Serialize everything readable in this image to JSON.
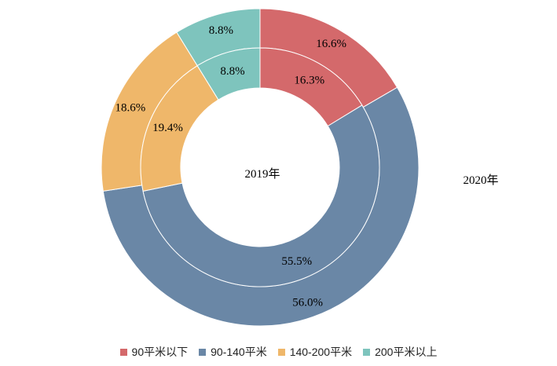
{
  "chart_data": {
    "type": "pie",
    "subtype": "nested-donut",
    "title": "",
    "categories": [
      "90平米以下",
      "90-140平米",
      "140-200平米",
      "200平米以上"
    ],
    "colors": [
      "#d4696b",
      "#6a87a6",
      "#efb76a",
      "#7ec4bd"
    ],
    "series": [
      {
        "name": "2019年",
        "ring": "inner",
        "values": [
          16.3,
          55.5,
          19.4,
          8.8
        ],
        "labels": [
          "16.3%",
          "55.5%",
          "19.4%",
          "8.8%"
        ]
      },
      {
        "name": "2020年",
        "ring": "outer",
        "values": [
          16.6,
          56.0,
          18.6,
          8.8
        ],
        "labels": [
          "16.6%",
          "56.0%",
          "18.6%",
          "8.8%"
        ]
      }
    ],
    "legend": "bottom"
  }
}
